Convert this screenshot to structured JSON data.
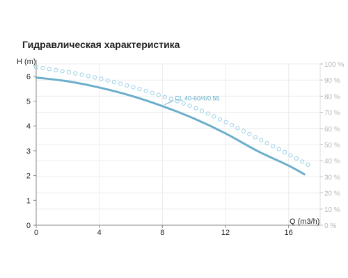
{
  "page_title": "Гидравлическая характеристика",
  "chart_data": {
    "type": "line",
    "title": "Гидравлическая характеристика",
    "xlabel": "Q (m3/h)",
    "ylabel": "H (m)",
    "xlim": [
      0,
      18
    ],
    "ylim": [
      0,
      6.5
    ],
    "x_ticks": [
      "0",
      "4",
      "8",
      "12",
      "16"
    ],
    "y_ticks": [
      "0",
      "1",
      "2",
      "3",
      "4",
      "5",
      "6"
    ],
    "y2_ticks": [
      "0 %",
      "10 %",
      "20 %",
      "30 %",
      "40 %",
      "50 %",
      "60 %",
      "70 %",
      "80 %",
      "90 %",
      "100 %"
    ],
    "y2lim": [
      0,
      100
    ],
    "grid": true,
    "series": [
      {
        "name": "CL 40-60/4/0.55",
        "axis": "left",
        "style": "solid",
        "color": "#6aaecb",
        "x": [
          0,
          2,
          4,
          6,
          8,
          10,
          12,
          14,
          16,
          17
        ],
        "y": [
          5.95,
          5.8,
          5.55,
          5.22,
          4.8,
          4.3,
          3.7,
          3.0,
          2.4,
          2.05
        ]
      },
      {
        "name": "",
        "axis": "right",
        "style": "dotted-circles",
        "color": "#9dd0e8",
        "x": [
          0,
          2,
          4,
          6,
          8,
          10,
          12,
          14,
          16,
          17.5
        ],
        "y": [
          98,
          95,
          91,
          86,
          80,
          73,
          64,
          54,
          44,
          36
        ]
      }
    ]
  }
}
